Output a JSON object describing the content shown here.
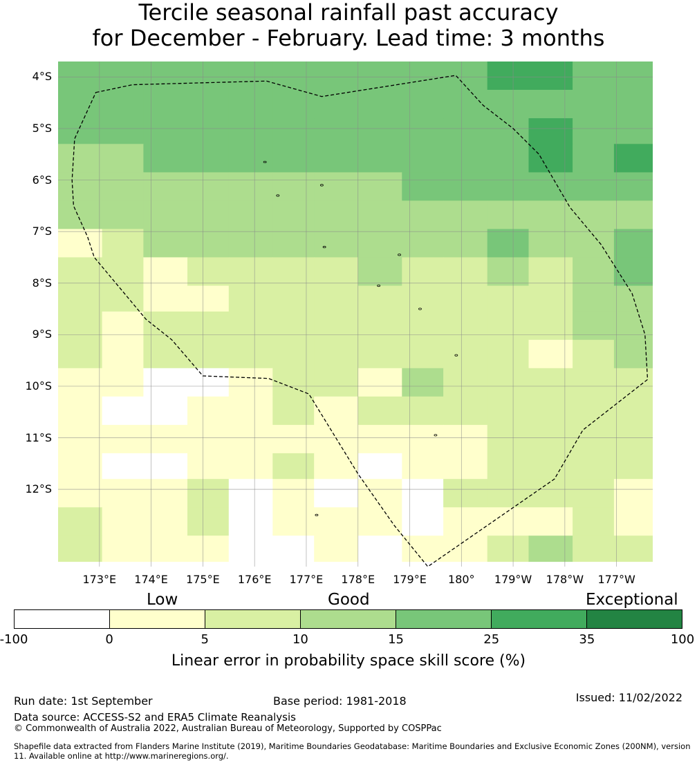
{
  "title": {
    "line1": "Tercile seasonal rainfall past accuracy",
    "line2": "for December - February. Lead time: 3 months"
  },
  "map": {
    "lat_labels": [
      "4°S",
      "5°S",
      "6°S",
      "7°S",
      "8°S",
      "9°S",
      "10°S",
      "11°S",
      "12°S"
    ],
    "lon_labels": [
      "173°E",
      "174°E",
      "175°E",
      "176°E",
      "177°E",
      "178°E",
      "179°E",
      "180°",
      "179°W",
      "178°W",
      "177°W"
    ],
    "extent": {
      "lon_min": 172.2,
      "lon_max": 183.7,
      "lat_max": -3.7,
      "lat_min": -13.5
    },
    "grid_lat_top": [
      -3.7,
      -4.25,
      -4.8,
      -5.3,
      -5.85,
      -6.4,
      -6.95,
      -7.5,
      -8.05,
      -8.55,
      -9.1,
      -9.65,
      -10.2,
      -10.75,
      -11.3,
      -11.8,
      -12.35,
      -12.9,
      -13.4
    ],
    "grid_lon_left": [
      172.2,
      173.05,
      173.85,
      174.7,
      175.5,
      176.35,
      177.15,
      178.0,
      178.85,
      179.65,
      180.5,
      181.3,
      182.15,
      182.95,
      183.7
    ],
    "skill_grid": [
      [
        4,
        4,
        4,
        4,
        4,
        4,
        4,
        4,
        4,
        4,
        5,
        5,
        4,
        4
      ],
      [
        4,
        4,
        4,
        4,
        4,
        4,
        4,
        4,
        4,
        4,
        4,
        4,
        4,
        4
      ],
      [
        4,
        4,
        4,
        4,
        4,
        4,
        4,
        4,
        4,
        4,
        4,
        5,
        4,
        4
      ],
      [
        3,
        3,
        4,
        4,
        4,
        4,
        4,
        4,
        4,
        4,
        4,
        5,
        4,
        5
      ],
      [
        3,
        3,
        3,
        3,
        3,
        3,
        3,
        3,
        4,
        4,
        4,
        4,
        4,
        4
      ],
      [
        3,
        3,
        3,
        3,
        3,
        3,
        3,
        3,
        3,
        3,
        3,
        3,
        3,
        3
      ],
      [
        1,
        2,
        3,
        3,
        3,
        3,
        3,
        3,
        3,
        3,
        4,
        3,
        3,
        4
      ],
      [
        2,
        2,
        1,
        2,
        2,
        2,
        2,
        3,
        2,
        2,
        3,
        2,
        3,
        4
      ],
      [
        2,
        2,
        1,
        1,
        2,
        2,
        2,
        2,
        2,
        2,
        2,
        2,
        3,
        3
      ],
      [
        2,
        1,
        2,
        2,
        2,
        2,
        2,
        2,
        2,
        2,
        2,
        2,
        3,
        3
      ],
      [
        2,
        1,
        2,
        2,
        2,
        2,
        2,
        2,
        2,
        2,
        2,
        1,
        2,
        3
      ],
      [
        1,
        1,
        0,
        0,
        1,
        2,
        2,
        1,
        3,
        2,
        2,
        2,
        2,
        2
      ],
      [
        1,
        0,
        0,
        1,
        1,
        2,
        1,
        2,
        2,
        2,
        2,
        2,
        2,
        2
      ],
      [
        1,
        1,
        1,
        1,
        1,
        1,
        1,
        1,
        1,
        1,
        2,
        2,
        2,
        2
      ],
      [
        1,
        0,
        0,
        1,
        1,
        2,
        1,
        0,
        1,
        1,
        2,
        2,
        2,
        2
      ],
      [
        1,
        1,
        1,
        2,
        0,
        1,
        0,
        1,
        0,
        2,
        2,
        2,
        2,
        1
      ],
      [
        2,
        1,
        1,
        2,
        0,
        1,
        1,
        1,
        0,
        1,
        1,
        1,
        2,
        1
      ],
      [
        2,
        1,
        1,
        1,
        0,
        0,
        1,
        0,
        1,
        1,
        2,
        3,
        2,
        2
      ]
    ],
    "boundary_path": [
      [
        172.93,
        -4.3
      ],
      [
        173.64,
        -4.15
      ],
      [
        176.23,
        -4.08
      ],
      [
        177.3,
        -4.38
      ],
      [
        179.89,
        -3.97
      ],
      [
        180.42,
        -4.55
      ],
      [
        181.0,
        -5.0
      ],
      [
        181.5,
        -5.5
      ],
      [
        182.1,
        -6.53
      ],
      [
        182.7,
        -7.25
      ],
      [
        183.3,
        -8.2
      ],
      [
        183.55,
        -9.0
      ],
      [
        183.6,
        -9.87
      ],
      [
        182.35,
        -10.85
      ],
      [
        181.8,
        -11.8
      ],
      [
        179.35,
        -13.5
      ],
      [
        178.7,
        -12.7
      ],
      [
        178.0,
        -11.7
      ],
      [
        177.05,
        -10.15
      ],
      [
        176.27,
        -9.85
      ],
      [
        175.0,
        -9.8
      ],
      [
        174.4,
        -9.1
      ],
      [
        173.9,
        -8.7
      ],
      [
        172.9,
        -7.5
      ],
      [
        172.77,
        -7.1
      ],
      [
        172.5,
        -6.5
      ],
      [
        172.47,
        -6.0
      ],
      [
        172.52,
        -5.2
      ],
      [
        172.77,
        -4.65
      ]
    ]
  },
  "colorbar": {
    "categories": [
      "Low",
      "Good",
      "Exceptional"
    ],
    "colors": [
      "#ffffff",
      "#ffffcc",
      "#d9f0a3",
      "#addd8e",
      "#78c679",
      "#41ab5d",
      "#238443"
    ],
    "ticks": [
      "-100",
      "0",
      "5",
      "10",
      "15",
      "25",
      "35",
      "100"
    ],
    "label": "Linear error in probability space skill score (%)"
  },
  "footer": {
    "run_date": "Run date: 1st September",
    "base_period": "Base period: 1981-2018",
    "issued": "Issued: 11/02/2022",
    "data_source": "Data source: ACCESS-S2 and ERA5 Climate Reanalysis",
    "copyright": "© Commonwealth of Australia 2022, Australian Bureau of Meteorology, Supported by COSPPac",
    "shapefile": "Shapefile data extracted from Flanders Marine Institute (2019), Maritime Boundaries Geodatabase: Maritime Boundaries and Exclusive Economic Zones (200NM), version 11. Available online at http://www.marineregions.org/."
  }
}
